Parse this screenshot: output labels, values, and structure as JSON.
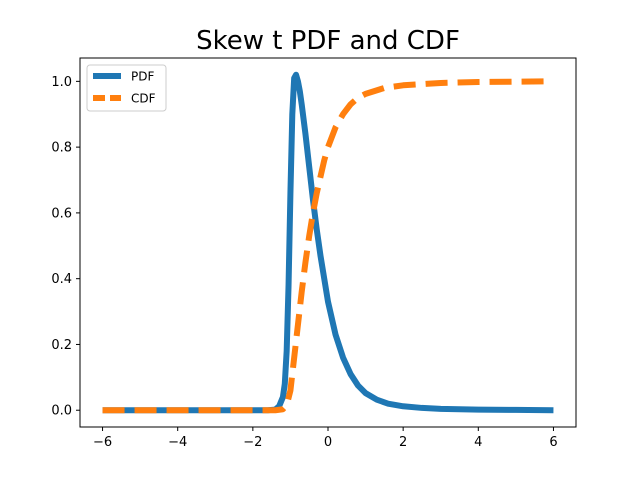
{
  "chart_data": {
    "type": "line",
    "title": "Skew t PDF and CDF",
    "xlabel": "",
    "ylabel": "",
    "xlim": [
      -6.6,
      6.6
    ],
    "ylim": [
      -0.051,
      1.071
    ],
    "x_ticks": [
      -6,
      -4,
      -2,
      0,
      2,
      4,
      6
    ],
    "x_tick_labels": [
      "−6",
      "−4",
      "−2",
      "0",
      "2",
      "4",
      "6"
    ],
    "y_ticks": [
      0.0,
      0.2,
      0.4,
      0.6,
      0.8,
      1.0
    ],
    "y_tick_labels": [
      "0.0",
      "0.2",
      "0.4",
      "0.6",
      "0.8",
      "1.0"
    ],
    "grid": false,
    "legend_position": "top-left",
    "series": [
      {
        "name": "PDF",
        "color": "#1f77b4",
        "style": "solid",
        "x": [
          -6.0,
          -4.0,
          -2.0,
          -1.6,
          -1.4,
          -1.3,
          -1.2,
          -1.15,
          -1.1,
          -1.05,
          -1.0,
          -0.95,
          -0.9,
          -0.85,
          -0.8,
          -0.75,
          -0.7,
          -0.6,
          -0.5,
          -0.4,
          -0.3,
          -0.2,
          -0.1,
          0.0,
          0.2,
          0.4,
          0.6,
          0.8,
          1.0,
          1.3,
          1.6,
          2.0,
          2.5,
          3.0,
          4.0,
          5.0,
          6.0
        ],
        "y": [
          0.0,
          0.0,
          0.0,
          0.0,
          0.002,
          0.012,
          0.04,
          0.08,
          0.18,
          0.38,
          0.66,
          0.9,
          1.01,
          1.02,
          1.0,
          0.97,
          0.93,
          0.84,
          0.74,
          0.64,
          0.55,
          0.47,
          0.4,
          0.33,
          0.23,
          0.16,
          0.11,
          0.075,
          0.052,
          0.032,
          0.02,
          0.012,
          0.007,
          0.004,
          0.002,
          0.001,
          0.0
        ]
      },
      {
        "name": "CDF",
        "color": "#ff7f0e",
        "style": "dashed",
        "x": [
          -6.0,
          -4.0,
          -2.0,
          -1.4,
          -1.2,
          -1.1,
          -1.0,
          -0.9,
          -0.8,
          -0.7,
          -0.6,
          -0.5,
          -0.4,
          -0.3,
          -0.2,
          -0.1,
          0.0,
          0.2,
          0.4,
          0.6,
          0.8,
          1.0,
          1.5,
          2.0,
          3.0,
          4.0,
          5.0,
          6.0
        ],
        "y": [
          0.0,
          0.0,
          0.0,
          0.0,
          0.003,
          0.015,
          0.06,
          0.16,
          0.26,
          0.36,
          0.45,
          0.53,
          0.6,
          0.66,
          0.71,
          0.76,
          0.8,
          0.86,
          0.9,
          0.93,
          0.95,
          0.962,
          0.98,
          0.988,
          0.995,
          0.998,
          0.999,
          1.0
        ]
      }
    ]
  }
}
